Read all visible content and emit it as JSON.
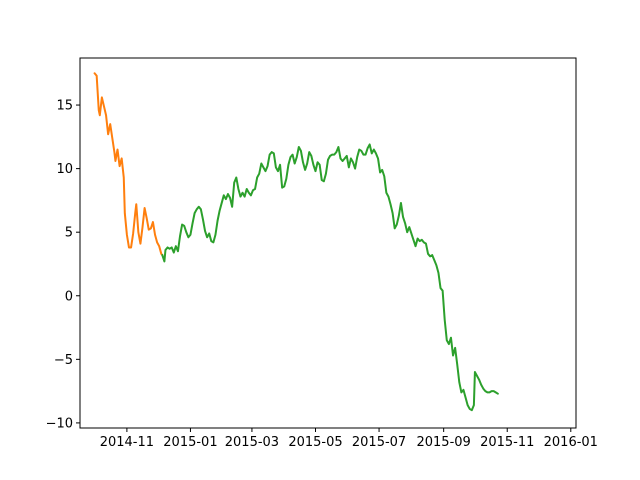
{
  "chart_data": {
    "type": "line",
    "title": "",
    "xlabel": "",
    "ylabel": "",
    "xlim": [
      "2014-09-17",
      "2016-01-06"
    ],
    "ylim": [
      -10.4,
      18.7
    ],
    "grid": false,
    "legend": "none",
    "x_ticks": [
      "2014-11-01",
      "2015-01-01",
      "2015-03-01",
      "2015-05-01",
      "2015-07-01",
      "2015-09-01",
      "2015-11-01",
      "2016-01-01"
    ],
    "x_tick_labels": [
      "2014-11",
      "2015-01",
      "2015-03",
      "2015-05",
      "2015-07",
      "2015-09",
      "2015-11",
      "2016-01"
    ],
    "y_ticks": [
      -10,
      -5,
      0,
      5,
      10,
      15
    ],
    "y_tick_labels": [
      "−10",
      "−5",
      "0",
      "5",
      "10",
      "15"
    ],
    "series": [
      {
        "color": "#ff7f0e",
        "points": [
          [
            "2014-10-01",
            17.5
          ],
          [
            "2014-10-03",
            17.3
          ],
          [
            "2014-10-05",
            14.6
          ],
          [
            "2014-10-06",
            14.2
          ],
          [
            "2014-10-08",
            15.6
          ],
          [
            "2014-10-10",
            14.9
          ],
          [
            "2014-10-12",
            14.2
          ],
          [
            "2014-10-14",
            12.7
          ],
          [
            "2014-10-16",
            13.5
          ],
          [
            "2014-10-18",
            12.4
          ],
          [
            "2014-10-20",
            11.3
          ],
          [
            "2014-10-21",
            10.6
          ],
          [
            "2014-10-23",
            11.5
          ],
          [
            "2014-10-25",
            10.2
          ],
          [
            "2014-10-27",
            10.8
          ],
          [
            "2014-10-29",
            9.3
          ],
          [
            "2014-10-30",
            6.5
          ],
          [
            "2014-11-01",
            4.8
          ],
          [
            "2014-11-03",
            3.8
          ],
          [
            "2014-11-05",
            3.8
          ],
          [
            "2014-11-07",
            4.9
          ],
          [
            "2014-11-09",
            6.5
          ],
          [
            "2014-11-10",
            7.2
          ],
          [
            "2014-11-12",
            5.0
          ],
          [
            "2014-11-14",
            4.1
          ],
          [
            "2014-11-16",
            5.4
          ],
          [
            "2014-11-18",
            6.9
          ],
          [
            "2014-11-20",
            6.1
          ],
          [
            "2014-11-22",
            5.2
          ],
          [
            "2014-11-24",
            5.3
          ],
          [
            "2014-11-26",
            5.8
          ],
          [
            "2014-11-28",
            4.8
          ],
          [
            "2014-11-30",
            4.2
          ],
          [
            "2014-12-02",
            3.9
          ],
          [
            "2014-12-04",
            3.3
          ],
          [
            "2014-12-05",
            3.2
          ]
        ]
      },
      {
        "color": "#2ca02c",
        "points": [
          [
            "2014-12-05",
            3.2
          ],
          [
            "2014-12-07",
            2.7
          ],
          [
            "2014-12-08",
            3.6
          ],
          [
            "2014-12-10",
            3.8
          ],
          [
            "2014-12-12",
            3.7
          ],
          [
            "2014-12-14",
            3.8
          ],
          [
            "2014-12-16",
            3.4
          ],
          [
            "2014-12-18",
            3.9
          ],
          [
            "2014-12-20",
            3.5
          ],
          [
            "2014-12-22",
            4.7
          ],
          [
            "2014-12-24",
            5.6
          ],
          [
            "2014-12-26",
            5.5
          ],
          [
            "2014-12-28",
            5.0
          ],
          [
            "2014-12-30",
            4.6
          ],
          [
            "2015-01-01",
            4.8
          ],
          [
            "2015-01-03",
            5.7
          ],
          [
            "2015-01-05",
            6.5
          ],
          [
            "2015-01-07",
            6.8
          ],
          [
            "2015-01-09",
            7.0
          ],
          [
            "2015-01-11",
            6.8
          ],
          [
            "2015-01-13",
            6.0
          ],
          [
            "2015-01-15",
            5.1
          ],
          [
            "2015-01-17",
            4.6
          ],
          [
            "2015-01-19",
            4.9
          ],
          [
            "2015-01-21",
            4.3
          ],
          [
            "2015-01-23",
            4.2
          ],
          [
            "2015-01-25",
            4.8
          ],
          [
            "2015-01-27",
            5.9
          ],
          [
            "2015-01-29",
            6.7
          ],
          [
            "2015-01-31",
            7.3
          ],
          [
            "2015-02-02",
            7.9
          ],
          [
            "2015-02-04",
            7.6
          ],
          [
            "2015-02-06",
            8.0
          ],
          [
            "2015-02-08",
            7.7
          ],
          [
            "2015-02-10",
            7.0
          ],
          [
            "2015-02-12",
            8.9
          ],
          [
            "2015-02-14",
            9.3
          ],
          [
            "2015-02-16",
            8.4
          ],
          [
            "2015-02-18",
            7.8
          ],
          [
            "2015-02-20",
            8.1
          ],
          [
            "2015-02-22",
            7.8
          ],
          [
            "2015-02-24",
            8.4
          ],
          [
            "2015-02-26",
            8.1
          ],
          [
            "2015-02-28",
            7.9
          ],
          [
            "2015-03-02",
            8.3
          ],
          [
            "2015-03-04",
            8.4
          ],
          [
            "2015-03-06",
            9.3
          ],
          [
            "2015-03-08",
            9.6
          ],
          [
            "2015-03-10",
            10.4
          ],
          [
            "2015-03-12",
            10.1
          ],
          [
            "2015-03-14",
            9.8
          ],
          [
            "2015-03-16",
            10.2
          ],
          [
            "2015-03-18",
            11.1
          ],
          [
            "2015-03-20",
            11.3
          ],
          [
            "2015-03-22",
            11.2
          ],
          [
            "2015-03-24",
            10.1
          ],
          [
            "2015-03-26",
            9.8
          ],
          [
            "2015-03-28",
            10.3
          ],
          [
            "2015-03-30",
            8.5
          ],
          [
            "2015-04-01",
            8.6
          ],
          [
            "2015-04-03",
            9.2
          ],
          [
            "2015-04-05",
            10.3
          ],
          [
            "2015-04-07",
            10.9
          ],
          [
            "2015-04-09",
            11.1
          ],
          [
            "2015-04-11",
            10.4
          ],
          [
            "2015-04-13",
            10.9
          ],
          [
            "2015-04-15",
            11.7
          ],
          [
            "2015-04-17",
            11.4
          ],
          [
            "2015-04-19",
            10.5
          ],
          [
            "2015-04-21",
            9.9
          ],
          [
            "2015-04-23",
            10.4
          ],
          [
            "2015-04-25",
            11.3
          ],
          [
            "2015-04-27",
            11.0
          ],
          [
            "2015-04-29",
            10.3
          ],
          [
            "2015-05-01",
            9.8
          ],
          [
            "2015-05-03",
            10.5
          ],
          [
            "2015-05-05",
            10.3
          ],
          [
            "2015-05-07",
            9.1
          ],
          [
            "2015-05-09",
            9.0
          ],
          [
            "2015-05-11",
            9.6
          ],
          [
            "2015-05-13",
            10.7
          ],
          [
            "2015-05-15",
            11.0
          ],
          [
            "2015-05-17",
            11.1
          ],
          [
            "2015-05-19",
            11.1
          ],
          [
            "2015-05-21",
            11.3
          ],
          [
            "2015-05-23",
            11.7
          ],
          [
            "2015-05-25",
            10.8
          ],
          [
            "2015-05-27",
            10.6
          ],
          [
            "2015-05-29",
            10.8
          ],
          [
            "2015-05-31",
            11.0
          ],
          [
            "2015-06-02",
            10.1
          ],
          [
            "2015-06-04",
            10.8
          ],
          [
            "2015-06-06",
            10.5
          ],
          [
            "2015-06-08",
            10.0
          ],
          [
            "2015-06-10",
            10.9
          ],
          [
            "2015-06-12",
            11.5
          ],
          [
            "2015-06-14",
            11.4
          ],
          [
            "2015-06-16",
            11.1
          ],
          [
            "2015-06-18",
            11.1
          ],
          [
            "2015-06-20",
            11.6
          ],
          [
            "2015-06-22",
            11.9
          ],
          [
            "2015-06-24",
            11.2
          ],
          [
            "2015-06-26",
            11.5
          ],
          [
            "2015-06-28",
            11.2
          ],
          [
            "2015-06-30",
            10.8
          ],
          [
            "2015-07-02",
            9.7
          ],
          [
            "2015-07-04",
            9.9
          ],
          [
            "2015-07-06",
            9.4
          ],
          [
            "2015-07-08",
            8.1
          ],
          [
            "2015-07-10",
            7.8
          ],
          [
            "2015-07-12",
            7.2
          ],
          [
            "2015-07-14",
            6.5
          ],
          [
            "2015-07-16",
            5.3
          ],
          [
            "2015-07-18",
            5.6
          ],
          [
            "2015-07-20",
            6.3
          ],
          [
            "2015-07-22",
            7.3
          ],
          [
            "2015-07-24",
            6.2
          ],
          [
            "2015-07-26",
            5.7
          ],
          [
            "2015-07-28",
            5.0
          ],
          [
            "2015-07-30",
            5.4
          ],
          [
            "2015-08-01",
            4.9
          ],
          [
            "2015-08-03",
            4.4
          ],
          [
            "2015-08-05",
            3.9
          ],
          [
            "2015-08-07",
            4.5
          ],
          [
            "2015-08-09",
            4.3
          ],
          [
            "2015-08-11",
            4.4
          ],
          [
            "2015-08-13",
            4.2
          ],
          [
            "2015-08-15",
            4.1
          ],
          [
            "2015-08-17",
            3.3
          ],
          [
            "2015-08-19",
            3.1
          ],
          [
            "2015-08-21",
            3.2
          ],
          [
            "2015-08-23",
            2.8
          ],
          [
            "2015-08-25",
            2.4
          ],
          [
            "2015-08-27",
            1.8
          ],
          [
            "2015-08-29",
            0.6
          ],
          [
            "2015-08-31",
            0.4
          ],
          [
            "2015-09-02",
            -1.9
          ],
          [
            "2015-09-04",
            -3.5
          ],
          [
            "2015-09-06",
            -3.8
          ],
          [
            "2015-09-08",
            -3.3
          ],
          [
            "2015-09-10",
            -4.7
          ],
          [
            "2015-09-12",
            -4.1
          ],
          [
            "2015-09-14",
            -5.4
          ],
          [
            "2015-09-16",
            -6.8
          ],
          [
            "2015-09-18",
            -7.6
          ],
          [
            "2015-09-20",
            -7.4
          ],
          [
            "2015-09-22",
            -8.0
          ],
          [
            "2015-09-24",
            -8.6
          ],
          [
            "2015-09-26",
            -8.9
          ],
          [
            "2015-09-28",
            -9.0
          ],
          [
            "2015-09-30",
            -8.6
          ],
          [
            "2015-10-01",
            -6.0
          ],
          [
            "2015-10-03",
            -6.3
          ],
          [
            "2015-10-05",
            -6.6
          ],
          [
            "2015-10-07",
            -7.0
          ],
          [
            "2015-10-09",
            -7.3
          ],
          [
            "2015-10-11",
            -7.5
          ],
          [
            "2015-10-13",
            -7.6
          ],
          [
            "2015-10-15",
            -7.6
          ],
          [
            "2015-10-17",
            -7.5
          ],
          [
            "2015-10-19",
            -7.5
          ],
          [
            "2015-10-21",
            -7.6
          ],
          [
            "2015-10-23",
            -7.7
          ]
        ]
      }
    ]
  }
}
